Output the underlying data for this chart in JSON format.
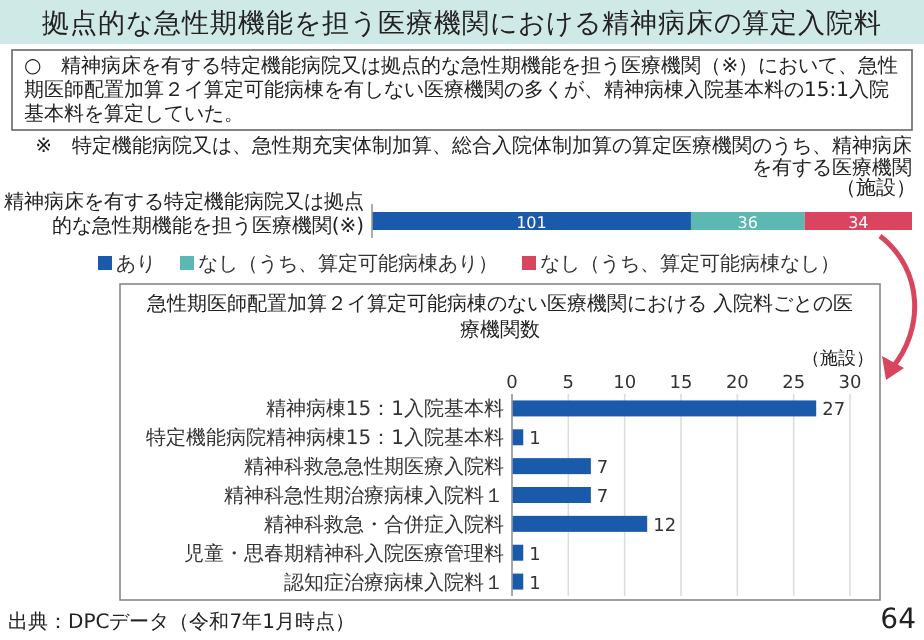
{
  "chart_data": [
    {
      "type": "bar",
      "orientation": "horizontal",
      "stacked": true,
      "title": "拠点的な急性期機能を担う医療機関における精神病床の算定入院料",
      "xlabel": "（施設）",
      "categories": [
        "精神病床を有する特定機能病院又は拠点的な急性期機能を担う医療機関(※)"
      ],
      "series": [
        {
          "name": "あり",
          "color": "#1a5aaa",
          "values": [
            101
          ]
        },
        {
          "name": "なし（うち、算定可能病棟あり）",
          "color": "#5cb8b2",
          "values": [
            36
          ]
        },
        {
          "name": "なし（うち、算定可能病棟なし）",
          "color": "#d9455f",
          "values": [
            34
          ]
        }
      ],
      "data_labels": true,
      "legend": "bottom",
      "annotations": [
        "○　精神病床を有する特定機能病院又は拠点的な急性期機能を担う医療機関（※）において、急性期医師配置加算２イ算定可能病棟を有しない医療機関の多くが、精神病棟入院基本料の15:1入院基本料を算定していた。",
        "※　特定機能病院又は、急性期充実体制加算、総合入院体制加算の算定医療機関のうち、精神病床を有する医療機関",
        "出典：DPCデータ（令和7年1月時点）",
        "64"
      ]
    },
    {
      "type": "bar",
      "orientation": "horizontal",
      "title": "急性期医師配置加算２イ算定可能病棟のない医療機関における 入院料ごとの医療機関数",
      "xlabel": "（施設）",
      "categories": [
        "精神病棟15：1入院基本料",
        "特定機能病院精神病棟15：1入院基本料",
        "精神科救急急性期医療入院料",
        "精神科急性期治療病棟入院料１",
        "精神科救急・合併症入院料",
        "児童・思春期精神科入院医療管理料",
        "認知症治療病棟入院料１"
      ],
      "values": [
        27,
        1,
        7,
        7,
        12,
        1,
        1
      ],
      "color": "#1a5aaa",
      "xlim": [
        0,
        30
      ],
      "xticks": [
        0,
        5,
        10,
        15,
        20,
        25,
        30
      ],
      "grid": "x",
      "data_labels": true
    }
  ]
}
